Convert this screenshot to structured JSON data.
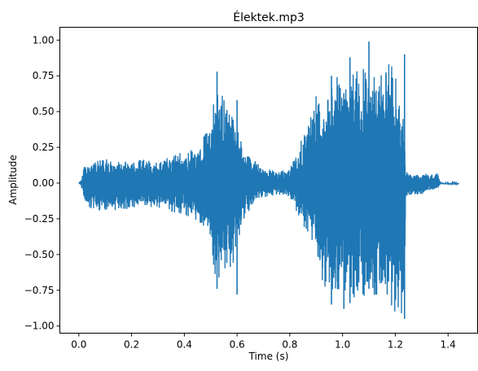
{
  "chart_data": {
    "type": "line",
    "title": "Élektek.mp3",
    "xlabel": "Time (s)",
    "ylabel": "Amplitude",
    "xlim": [
      -0.072,
      1.512
    ],
    "ylim": [
      -1.05,
      1.09
    ],
    "x_ticks": [
      0.0,
      0.2,
      0.4,
      0.6,
      0.8,
      1.0,
      1.2,
      1.4
    ],
    "x_tick_labels": [
      "0.0",
      "0.2",
      "0.4",
      "0.6",
      "0.8",
      "1.0",
      "1.2",
      "1.4"
    ],
    "y_ticks": [
      -1.0,
      -0.75,
      -0.5,
      -0.25,
      0.0,
      0.25,
      0.5,
      0.75,
      1.0
    ],
    "y_tick_labels": [
      "−1.00",
      "−0.75",
      "−0.50",
      "−0.25",
      "0.00",
      "0.25",
      "0.50",
      "0.75",
      "1.00"
    ],
    "grid": false,
    "series": [
      {
        "color": "#1f77b4",
        "envelope": {
          "t": [
            0.0,
            0.01,
            0.02,
            0.05,
            0.1,
            0.15,
            0.2,
            0.25,
            0.3,
            0.35,
            0.4,
            0.45,
            0.48,
            0.5,
            0.52,
            0.55,
            0.58,
            0.6,
            0.63,
            0.66,
            0.7,
            0.75,
            0.8,
            0.83,
            0.85,
            0.88,
            0.9,
            0.92,
            0.93,
            0.95,
            0.98,
            1.0,
            1.03,
            1.05,
            1.08,
            1.1,
            1.13,
            1.15,
            1.18,
            1.2,
            1.22,
            1.235,
            1.24,
            1.26,
            1.3,
            1.34,
            1.36,
            1.37,
            1.39,
            1.42,
            1.44
          ],
          "upper": [
            0.0,
            0.02,
            0.12,
            0.15,
            0.17,
            0.16,
            0.16,
            0.17,
            0.14,
            0.2,
            0.22,
            0.25,
            0.35,
            0.45,
            0.7,
            0.62,
            0.5,
            0.42,
            0.2,
            0.17,
            0.11,
            0.08,
            0.1,
            0.22,
            0.35,
            0.5,
            0.62,
            0.58,
            0.55,
            0.6,
            0.82,
            0.7,
            0.8,
            0.9,
            0.82,
            0.72,
            0.9,
            0.75,
            0.85,
            0.95,
            0.55,
            0.42,
            0.08,
            0.06,
            0.07,
            0.06,
            0.07,
            0.01,
            0.0,
            0.0,
            0.0
          ],
          "lower": [
            0.0,
            -0.03,
            -0.15,
            -0.18,
            -0.2,
            -0.2,
            -0.17,
            -0.17,
            -0.17,
            -0.2,
            -0.22,
            -0.27,
            -0.32,
            -0.45,
            -0.68,
            -0.65,
            -0.6,
            -0.45,
            -0.25,
            -0.16,
            -0.11,
            -0.08,
            -0.1,
            -0.22,
            -0.3,
            -0.4,
            -0.45,
            -0.72,
            -0.78,
            -0.75,
            -0.82,
            -0.72,
            -0.82,
            -0.8,
            -0.85,
            -0.8,
            -0.82,
            -0.85,
            -0.9,
            -0.9,
            -0.92,
            -0.88,
            -0.1,
            -0.08,
            -0.08,
            -0.06,
            -0.05,
            -0.01,
            -0.01,
            -0.01,
            -0.01
          ]
        }
      }
    ]
  }
}
